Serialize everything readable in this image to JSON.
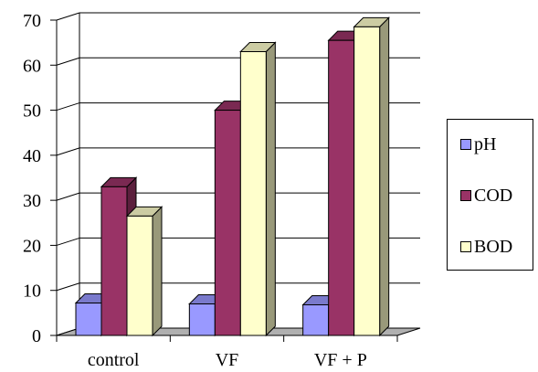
{
  "chart_data": {
    "type": "bar",
    "subtype": "3d-clustered-column",
    "title": "",
    "xlabel": "",
    "ylabel": "",
    "categories": [
      "control",
      "VF",
      "VF + P"
    ],
    "series": [
      {
        "name": "pH",
        "values": [
          7.2,
          7.0,
          6.8
        ],
        "color": "#9999ff"
      },
      {
        "name": "COD",
        "values": [
          33,
          50,
          65.5
        ],
        "color": "#993366"
      },
      {
        "name": "BOD",
        "values": [
          26.5,
          63,
          68.5
        ],
        "color": "#ffffcc"
      }
    ],
    "ylim": [
      0,
      70
    ],
    "yticks": [
      "0",
      "10",
      "20",
      "30",
      "40",
      "50",
      "60",
      "70"
    ],
    "grid": true,
    "legend_position": "right"
  }
}
